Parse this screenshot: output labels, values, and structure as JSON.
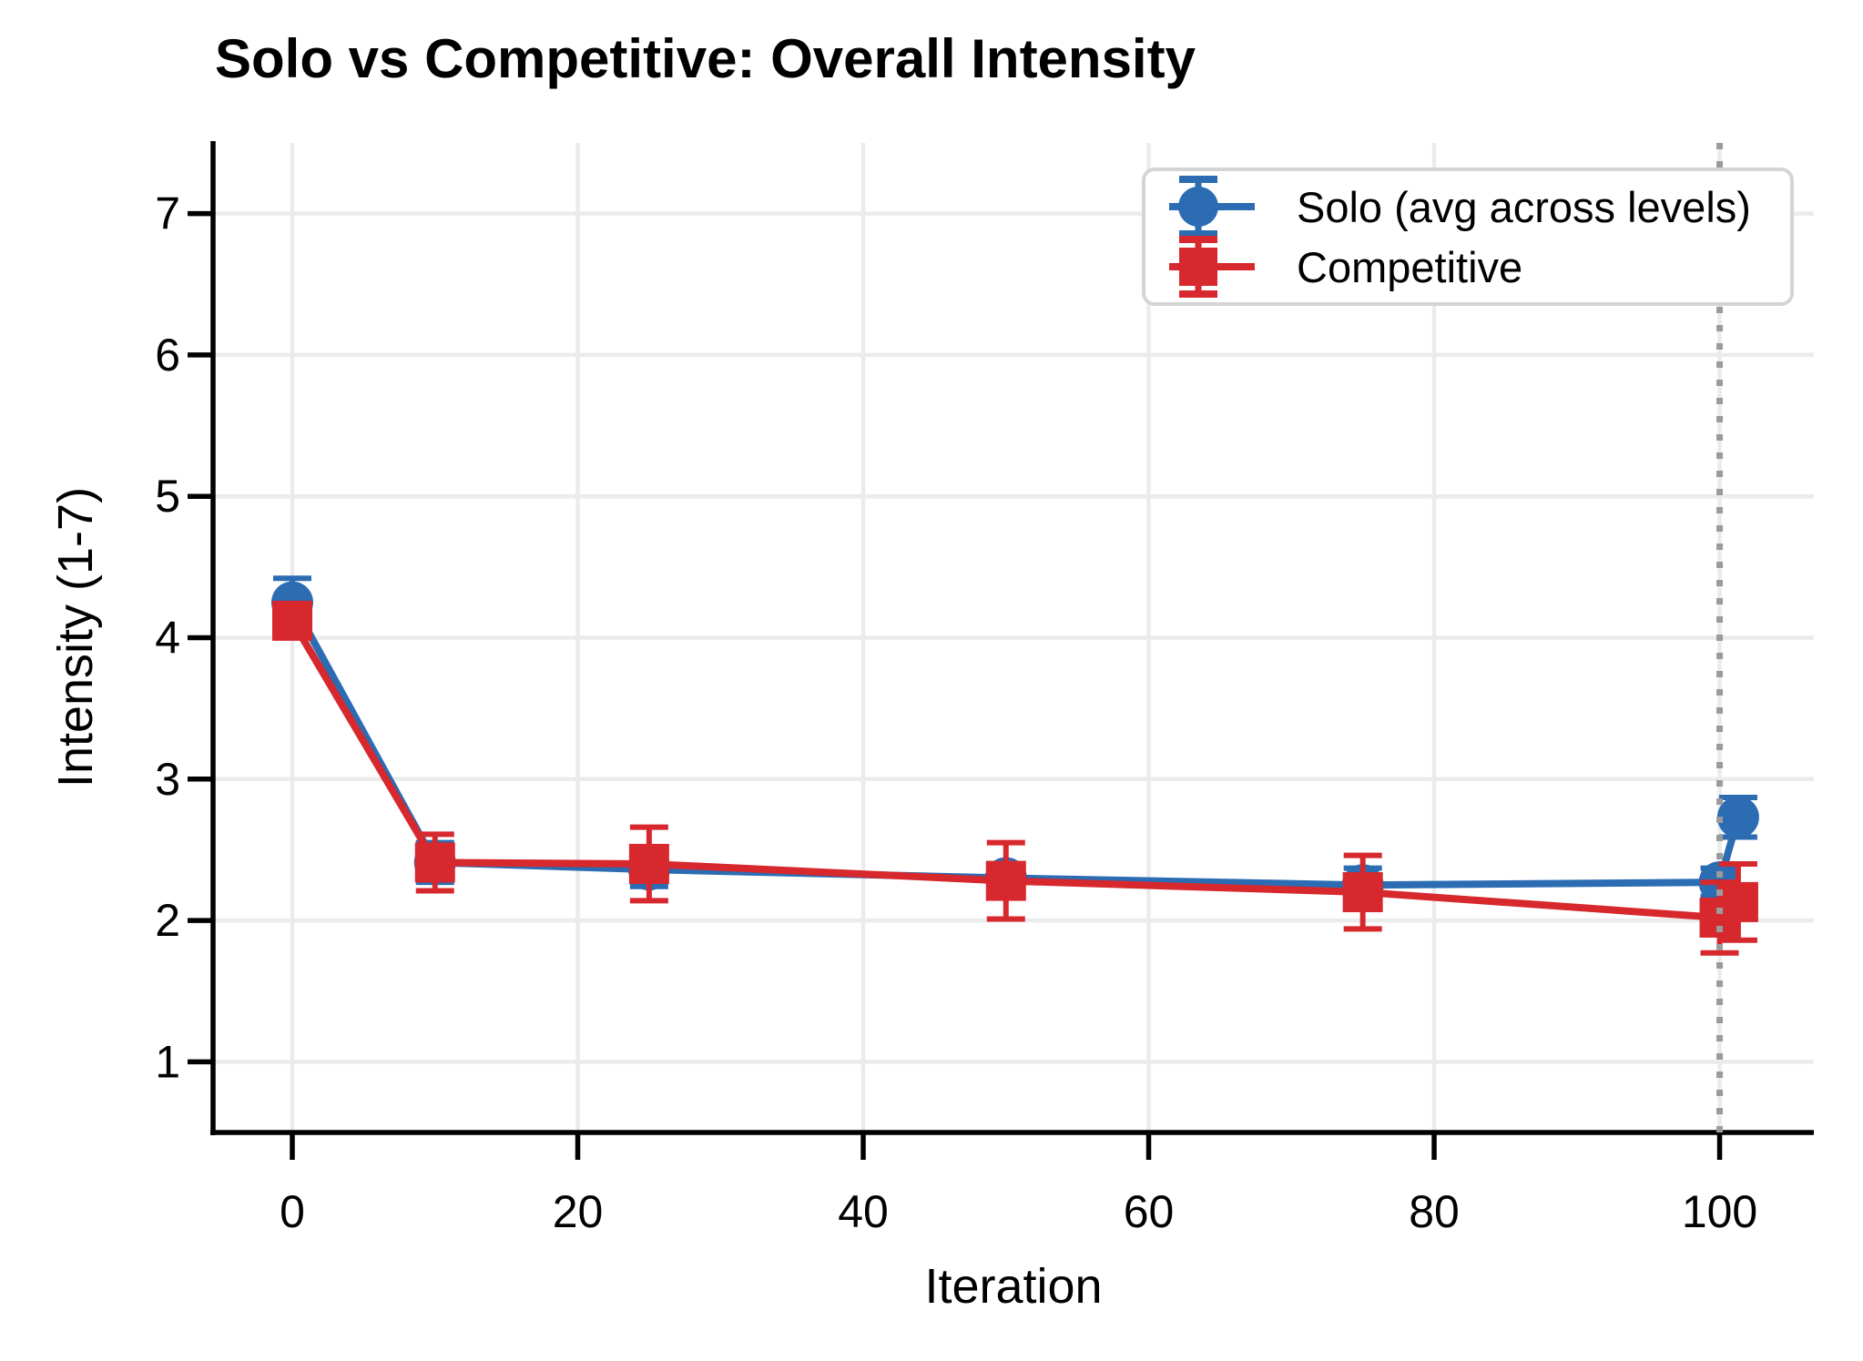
{
  "chart_data": {
    "type": "line",
    "title": "Solo vs Competitive: Overall Intensity",
    "xlabel": "Iteration",
    "ylabel": "Intensity (1-7)",
    "xlim": [
      -5.55,
      106.6
    ],
    "ylim": [
      0.5,
      7.5
    ],
    "xticks": [
      0,
      20,
      40,
      60,
      80,
      100
    ],
    "yticks": [
      1,
      2,
      3,
      4,
      5,
      6,
      7
    ],
    "grid": true,
    "grid_color": "#ebebeb",
    "vline_x": 100,
    "vline_color": "#9b9b9b",
    "vline_style": "dotted",
    "legend_position": "upper right",
    "series": [
      {
        "name": "Solo (avg across levels)",
        "color": "#2b6cb3",
        "marker": "circle",
        "points": [
          {
            "x": 0,
            "y": 4.25,
            "err": 0.17
          },
          {
            "x": 10,
            "y": 2.41,
            "err": 0.14
          },
          {
            "x": 25,
            "y": 2.36,
            "err": 0.12
          },
          {
            "x": 50,
            "y": 2.3,
            "err": 0.09
          },
          {
            "x": 75,
            "y": 2.25,
            "err": 0.12
          },
          {
            "x": 100,
            "y": 2.27,
            "err": 0.1
          },
          {
            "x": 101.3,
            "y": 2.73,
            "err": 0.14
          }
        ]
      },
      {
        "name": "Competitive",
        "color": "#d6282d",
        "marker": "square",
        "points": [
          {
            "x": 0,
            "y": 4.12,
            "err": 0.12
          },
          {
            "x": 10,
            "y": 2.41,
            "err": 0.2
          },
          {
            "x": 25,
            "y": 2.4,
            "err": 0.26
          },
          {
            "x": 50,
            "y": 2.28,
            "err": 0.27
          },
          {
            "x": 75,
            "y": 2.2,
            "err": 0.26
          },
          {
            "x": 100,
            "y": 2.02,
            "err": 0.25
          },
          {
            "x": 101.3,
            "y": 2.13,
            "err": 0.27
          }
        ]
      }
    ]
  }
}
